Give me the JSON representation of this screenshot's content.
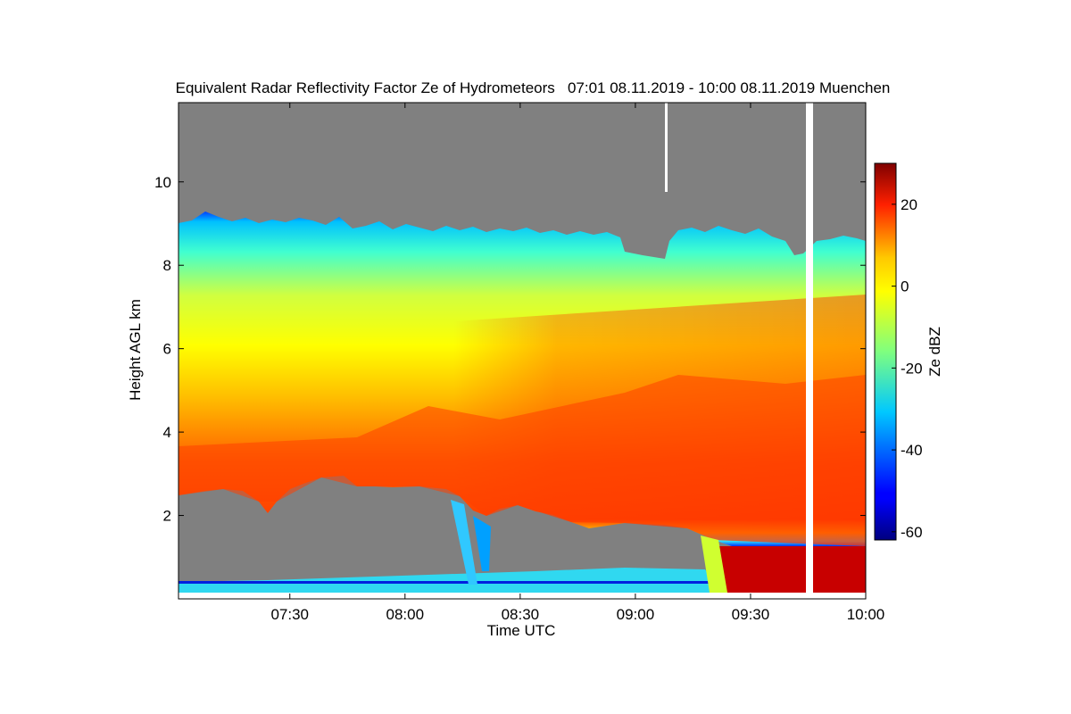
{
  "chart_data": {
    "type": "heatmap",
    "title": "Equivalent Radar Reflectivity Factor Ze of Hydrometeors   07:01 08.11.2019 - 10:00 08.11.2019 Muenchen",
    "xlabel": "Time UTC",
    "ylabel": "Height AGL km",
    "xlim_minutes": [
      421,
      600
    ],
    "ylim": [
      0,
      11.9
    ],
    "x_ticks": [
      {
        "value": 450,
        "label": "07:30"
      },
      {
        "value": 480,
        "label": "08:00"
      },
      {
        "value": 510,
        "label": "08:30"
      },
      {
        "value": 540,
        "label": "09:00"
      },
      {
        "value": 570,
        "label": "09:30"
      },
      {
        "value": 600,
        "label": "10:00"
      }
    ],
    "y_ticks": [
      {
        "value": 2,
        "label": "2"
      },
      {
        "value": 4,
        "label": "4"
      },
      {
        "value": 6,
        "label": "6"
      },
      {
        "value": 8,
        "label": "8"
      },
      {
        "value": 10,
        "label": "10"
      }
    ],
    "colorbar": {
      "label": "Ze dBZ",
      "range": [
        -62,
        30
      ],
      "ticks": [
        {
          "value": -60,
          "label": "-60"
        },
        {
          "value": -40,
          "label": "-40"
        },
        {
          "value": -20,
          "label": "-20"
        },
        {
          "value": 0,
          "label": "0"
        },
        {
          "value": 20,
          "label": "20"
        }
      ],
      "colormap": "jet"
    },
    "no_signal_color": "#808080",
    "missing_data_color": "#ffffff",
    "regions": [
      {
        "name": "upper-cloud-top",
        "value_dbz": -25
      },
      {
        "name": "mid-layer",
        "value_dbz": -5
      },
      {
        "name": "lower-layer",
        "value_dbz": 10
      },
      {
        "name": "melting-layer",
        "value_dbz": 18
      },
      {
        "name": "surface-layer",
        "value_dbz": -28
      },
      {
        "name": "rain-near-surface",
        "value_dbz": 28
      }
    ]
  }
}
